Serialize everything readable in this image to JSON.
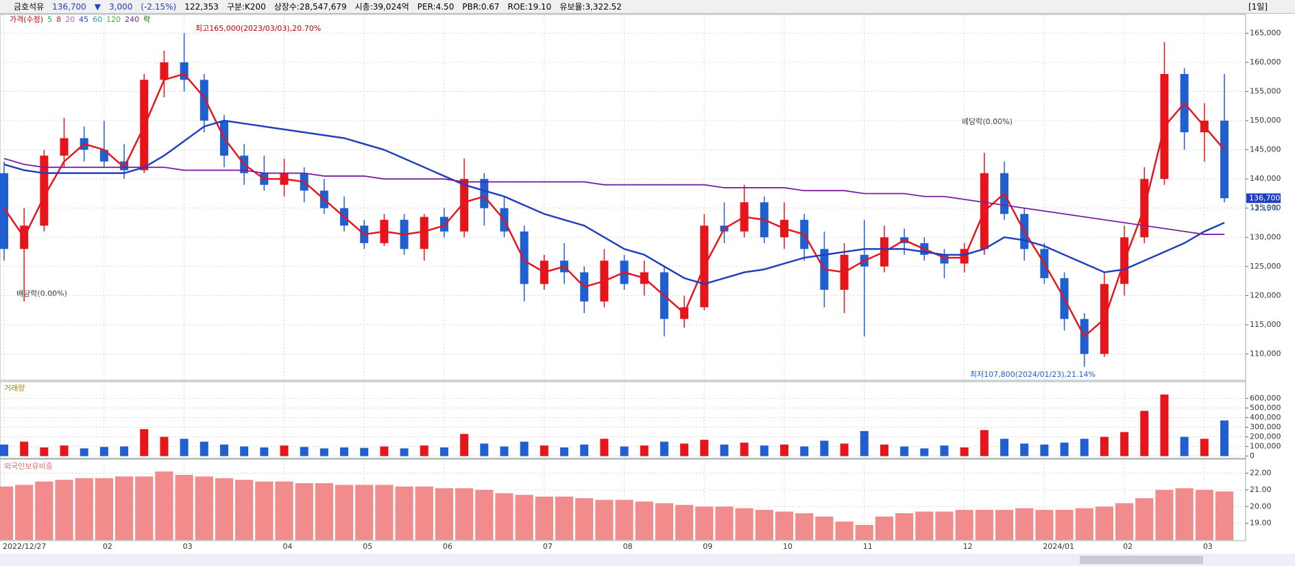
{
  "header": {
    "name": "금호석유",
    "price": "136,700",
    "arrow": "▼",
    "change": "3,000",
    "change_pct": "(-2.15%)",
    "volume": "122,353",
    "index": "구분:K200",
    "shares": "상장수:28,547,679",
    "cap": "시총:39,024억",
    "per": "PER:4.50",
    "pbr": "PBR:0.67",
    "roe": "ROE:19.10",
    "reserve": "유보율:3,322.52",
    "period": "[1일]"
  },
  "chart_data": [
    {
      "type": "candlestick",
      "legend": [
        {
          "name": "가격(수정)",
          "color": "#c00000"
        },
        {
          "name": "5",
          "color": "#00b050"
        },
        {
          "name": "8",
          "color": "#e8141b"
        },
        {
          "name": "20",
          "color": "#c060c0"
        },
        {
          "name": "45",
          "color": "#1f3fc0"
        },
        {
          "name": "60",
          "color": "#2aa198"
        },
        {
          "name": "120",
          "color": "#3cb043"
        },
        {
          "name": "240",
          "color": "#7a1fa2"
        },
        {
          "name": "락",
          "color": "#006400"
        }
      ],
      "up_color": "#e8141b",
      "down_color": "#1f5fd0",
      "categories": [
        "2022/12/27",
        null,
        null,
        null,
        null,
        "02",
        null,
        null,
        null,
        "03",
        null,
        null,
        null,
        null,
        "04",
        null,
        null,
        null,
        "05",
        null,
        null,
        null,
        "06",
        null,
        null,
        null,
        null,
        "07",
        null,
        null,
        null,
        "08",
        null,
        null,
        null,
        "09",
        null,
        null,
        null,
        "10",
        null,
        null,
        null,
        "11",
        null,
        null,
        null,
        null,
        "12",
        null,
        null,
        null,
        "2024/01",
        null,
        null,
        null,
        "02",
        null,
        null,
        null,
        "03",
        null
      ],
      "open": [
        141000,
        128000,
        132000,
        144000,
        147000,
        145000,
        143000,
        141500,
        157000,
        160000,
        157000,
        150000,
        144000,
        141000,
        139000,
        141000,
        138000,
        135000,
        132000,
        129000,
        133000,
        128000,
        133500,
        131000,
        140000,
        135000,
        131000,
        122000,
        126000,
        124000,
        119000,
        126000,
        122000,
        124000,
        116000,
        118000,
        132000,
        131000,
        136000,
        130000,
        133000,
        128000,
        121000,
        127000,
        125000,
        130000,
        129000,
        127000,
        125500,
        128000,
        141000,
        134000,
        128000,
        123000,
        116000,
        110000,
        122000,
        130000,
        140000,
        158000,
        148000,
        150000
      ],
      "high": [
        143000,
        135000,
        145000,
        150500,
        149000,
        150000,
        146000,
        158000,
        162000,
        165000,
        158000,
        151000,
        146000,
        144000,
        143500,
        142000,
        140000,
        137000,
        133000,
        134000,
        134000,
        134000,
        135000,
        143500,
        141000,
        137000,
        132000,
        127000,
        129000,
        125000,
        128000,
        127000,
        126000,
        125000,
        120000,
        134000,
        136000,
        139000,
        137000,
        136000,
        134000,
        131000,
        129000,
        133000,
        132000,
        131500,
        130000,
        128000,
        129000,
        144500,
        143000,
        135000,
        129000,
        124000,
        117000,
        124000,
        132000,
        142000,
        163500,
        159000,
        153000,
        158000
      ],
      "low": [
        126000,
        119000,
        131000,
        142000,
        143000,
        142000,
        140000,
        141000,
        154000,
        155000,
        148000,
        142000,
        139000,
        138000,
        137000,
        136000,
        134000,
        131000,
        128000,
        128500,
        127000,
        126000,
        130000,
        130000,
        132000,
        130000,
        119000,
        121000,
        122000,
        117000,
        118000,
        121000,
        120000,
        113000,
        114500,
        117500,
        129000,
        130000,
        129000,
        128000,
        126000,
        118000,
        117000,
        113000,
        124000,
        127000,
        126000,
        123000,
        124000,
        127000,
        133000,
        126000,
        122000,
        114000,
        107800,
        109500,
        120000,
        129000,
        139000,
        145000,
        143000,
        136000
      ],
      "close": [
        128000,
        132000,
        144000,
        147000,
        145000,
        143000,
        141500,
        157000,
        160000,
        157000,
        150000,
        144000,
        141000,
        139000,
        141000,
        138000,
        135000,
        132000,
        129000,
        133000,
        128000,
        133500,
        131000,
        140000,
        135000,
        131000,
        122000,
        126000,
        124000,
        119000,
        126000,
        122000,
        124000,
        116000,
        118000,
        132000,
        131000,
        136000,
        130000,
        133000,
        128000,
        121000,
        127000,
        125000,
        130000,
        129000,
        127000,
        125500,
        128000,
        141000,
        134000,
        128000,
        123000,
        116000,
        110000,
        122000,
        130000,
        140000,
        158000,
        148000,
        150000,
        136700
      ],
      "series": [
        {
          "name": "8",
          "color": "#e8141b",
          "values": [
            135000,
            130000,
            137000,
            143000,
            146000,
            145000,
            142000,
            149000,
            157000,
            158000,
            154000,
            147000,
            142500,
            140000,
            140000,
            139500,
            136500,
            133500,
            130500,
            131000,
            130500,
            131000,
            132000,
            136000,
            137000,
            133000,
            126000,
            124000,
            125000,
            121500,
            122500,
            124000,
            123000,
            120000,
            117000,
            125000,
            131500,
            133500,
            133000,
            131500,
            130500,
            124500,
            124000,
            126000,
            127500,
            129500,
            128000,
            126500,
            126500,
            134500,
            137500,
            131000,
            125500,
            119500,
            113000,
            116000,
            126000,
            135000,
            149000,
            153000,
            149000,
            145000
          ]
        },
        {
          "name": "45",
          "color": "#1f3fc0",
          "values": [
            142500,
            141500,
            141000,
            141000,
            141000,
            141000,
            141000,
            142000,
            144000,
            146500,
            149000,
            150000,
            149500,
            149000,
            148500,
            148000,
            147500,
            147000,
            146000,
            145000,
            143500,
            142000,
            140500,
            139000,
            138000,
            137000,
            135500,
            134000,
            133000,
            132000,
            130000,
            128000,
            127000,
            125000,
            123000,
            122000,
            123000,
            124000,
            124500,
            125500,
            126500,
            127000,
            127500,
            128000,
            128000,
            128000,
            127500,
            127000,
            127000,
            128000,
            130000,
            129500,
            128500,
            127000,
            125500,
            124000,
            124500,
            126000,
            127500,
            129000,
            131000,
            132500
          ]
        },
        {
          "name": "240",
          "color": "#7a1fa2",
          "values": [
            143500,
            142500,
            142000,
            142000,
            142000,
            142000,
            142000,
            142000,
            142000,
            141500,
            141500,
            141500,
            141500,
            141000,
            141000,
            141000,
            140500,
            140500,
            140500,
            140000,
            140000,
            140000,
            140000,
            139500,
            139500,
            139500,
            139500,
            139500,
            139500,
            139500,
            139000,
            139000,
            139000,
            139000,
            139000,
            139000,
            138500,
            138500,
            138500,
            138500,
            138000,
            138000,
            138000,
            137500,
            137500,
            137500,
            137000,
            137000,
            136500,
            136000,
            135500,
            135000,
            134500,
            134000,
            133500,
            133000,
            132500,
            132000,
            131500,
            131000,
            130500,
            130500
          ]
        }
      ],
      "ylim": [
        105600,
        168100
      ],
      "yticks": [
        {
          "value": 110000,
          "label": "110,000"
        },
        {
          "value": 115000,
          "label": "115,000"
        },
        {
          "value": 120000,
          "label": "120,000"
        },
        {
          "value": 125000,
          "label": "125,000"
        },
        {
          "value": 130000,
          "label": "130,000"
        },
        {
          "value": 135000,
          "label": "135,000"
        },
        {
          "value": 140000,
          "label": "140,000"
        },
        {
          "value": 145000,
          "label": "145,000"
        },
        {
          "value": 150000,
          "label": "150,000"
        },
        {
          "value": 155000,
          "label": "155,000"
        },
        {
          "value": 160000,
          "label": "160,000"
        },
        {
          "value": 165000,
          "label": "165,000"
        }
      ],
      "annotations": [
        "최고165,000(2023/03/03),20.70%",
        "최저107,800(2024/01/23),21.14%",
        "배당락(0.00%)",
        "배당락(0.00%)"
      ],
      "last_label": "136,700",
      "change_label": "-2.15%"
    },
    {
      "type": "bar",
      "title": "거래량",
      "values": [
        120000,
        150000,
        90000,
        110000,
        80000,
        95000,
        100000,
        280000,
        200000,
        180000,
        150000,
        120000,
        100000,
        90000,
        110000,
        95000,
        80000,
        90000,
        85000,
        100000,
        80000,
        110000,
        90000,
        230000,
        130000,
        100000,
        150000,
        110000,
        90000,
        120000,
        180000,
        100000,
        110000,
        150000,
        130000,
        170000,
        120000,
        140000,
        110000,
        120000,
        100000,
        160000,
        130000,
        260000,
        120000,
        100000,
        80000,
        110000,
        90000,
        270000,
        180000,
        130000,
        120000,
        140000,
        180000,
        200000,
        250000,
        470000,
        640000,
        200000,
        180000,
        370000
      ],
      "ylim": [
        -17000,
        766000
      ],
      "yticks": [
        0,
        {
          "value": 100000,
          "label": "100,000"
        },
        {
          "value": 200000,
          "label": "200,000"
        },
        {
          "value": 300000,
          "label": "300,000"
        },
        {
          "value": 400000,
          "label": "400,000"
        },
        {
          "value": 500000,
          "label": "500,000"
        },
        {
          "value": 600000,
          "label": "600,000"
        }
      ]
    },
    {
      "type": "bar",
      "title": "외국인보유비중",
      "color": "#f28b8b",
      "values": [
        21.2,
        21.3,
        21.5,
        21.6,
        21.7,
        21.7,
        21.8,
        21.8,
        22.1,
        21.9,
        21.8,
        21.7,
        21.6,
        21.5,
        21.5,
        21.4,
        21.4,
        21.3,
        21.3,
        21.3,
        21.2,
        21.2,
        21.1,
        21.1,
        21.0,
        20.8,
        20.7,
        20.6,
        20.6,
        20.5,
        20.4,
        20.4,
        20.3,
        20.2,
        20.1,
        20.0,
        20.0,
        19.9,
        19.8,
        19.7,
        19.6,
        19.4,
        19.1,
        18.9,
        19.4,
        19.6,
        19.7,
        19.7,
        19.8,
        19.8,
        19.8,
        19.9,
        19.8,
        19.8,
        19.9,
        20.0,
        20.2,
        20.5,
        21.0,
        21.1,
        21.0,
        20.9
      ],
      "ylim": [
        18,
        22.8
      ],
      "yticks": [
        {
          "value": 19,
          "label": "19.00"
        },
        {
          "value": 20,
          "label": "20.00"
        },
        {
          "value": 21,
          "label": "21.00"
        },
        {
          "value": 22,
          "label": "22.00"
        }
      ]
    }
  ]
}
